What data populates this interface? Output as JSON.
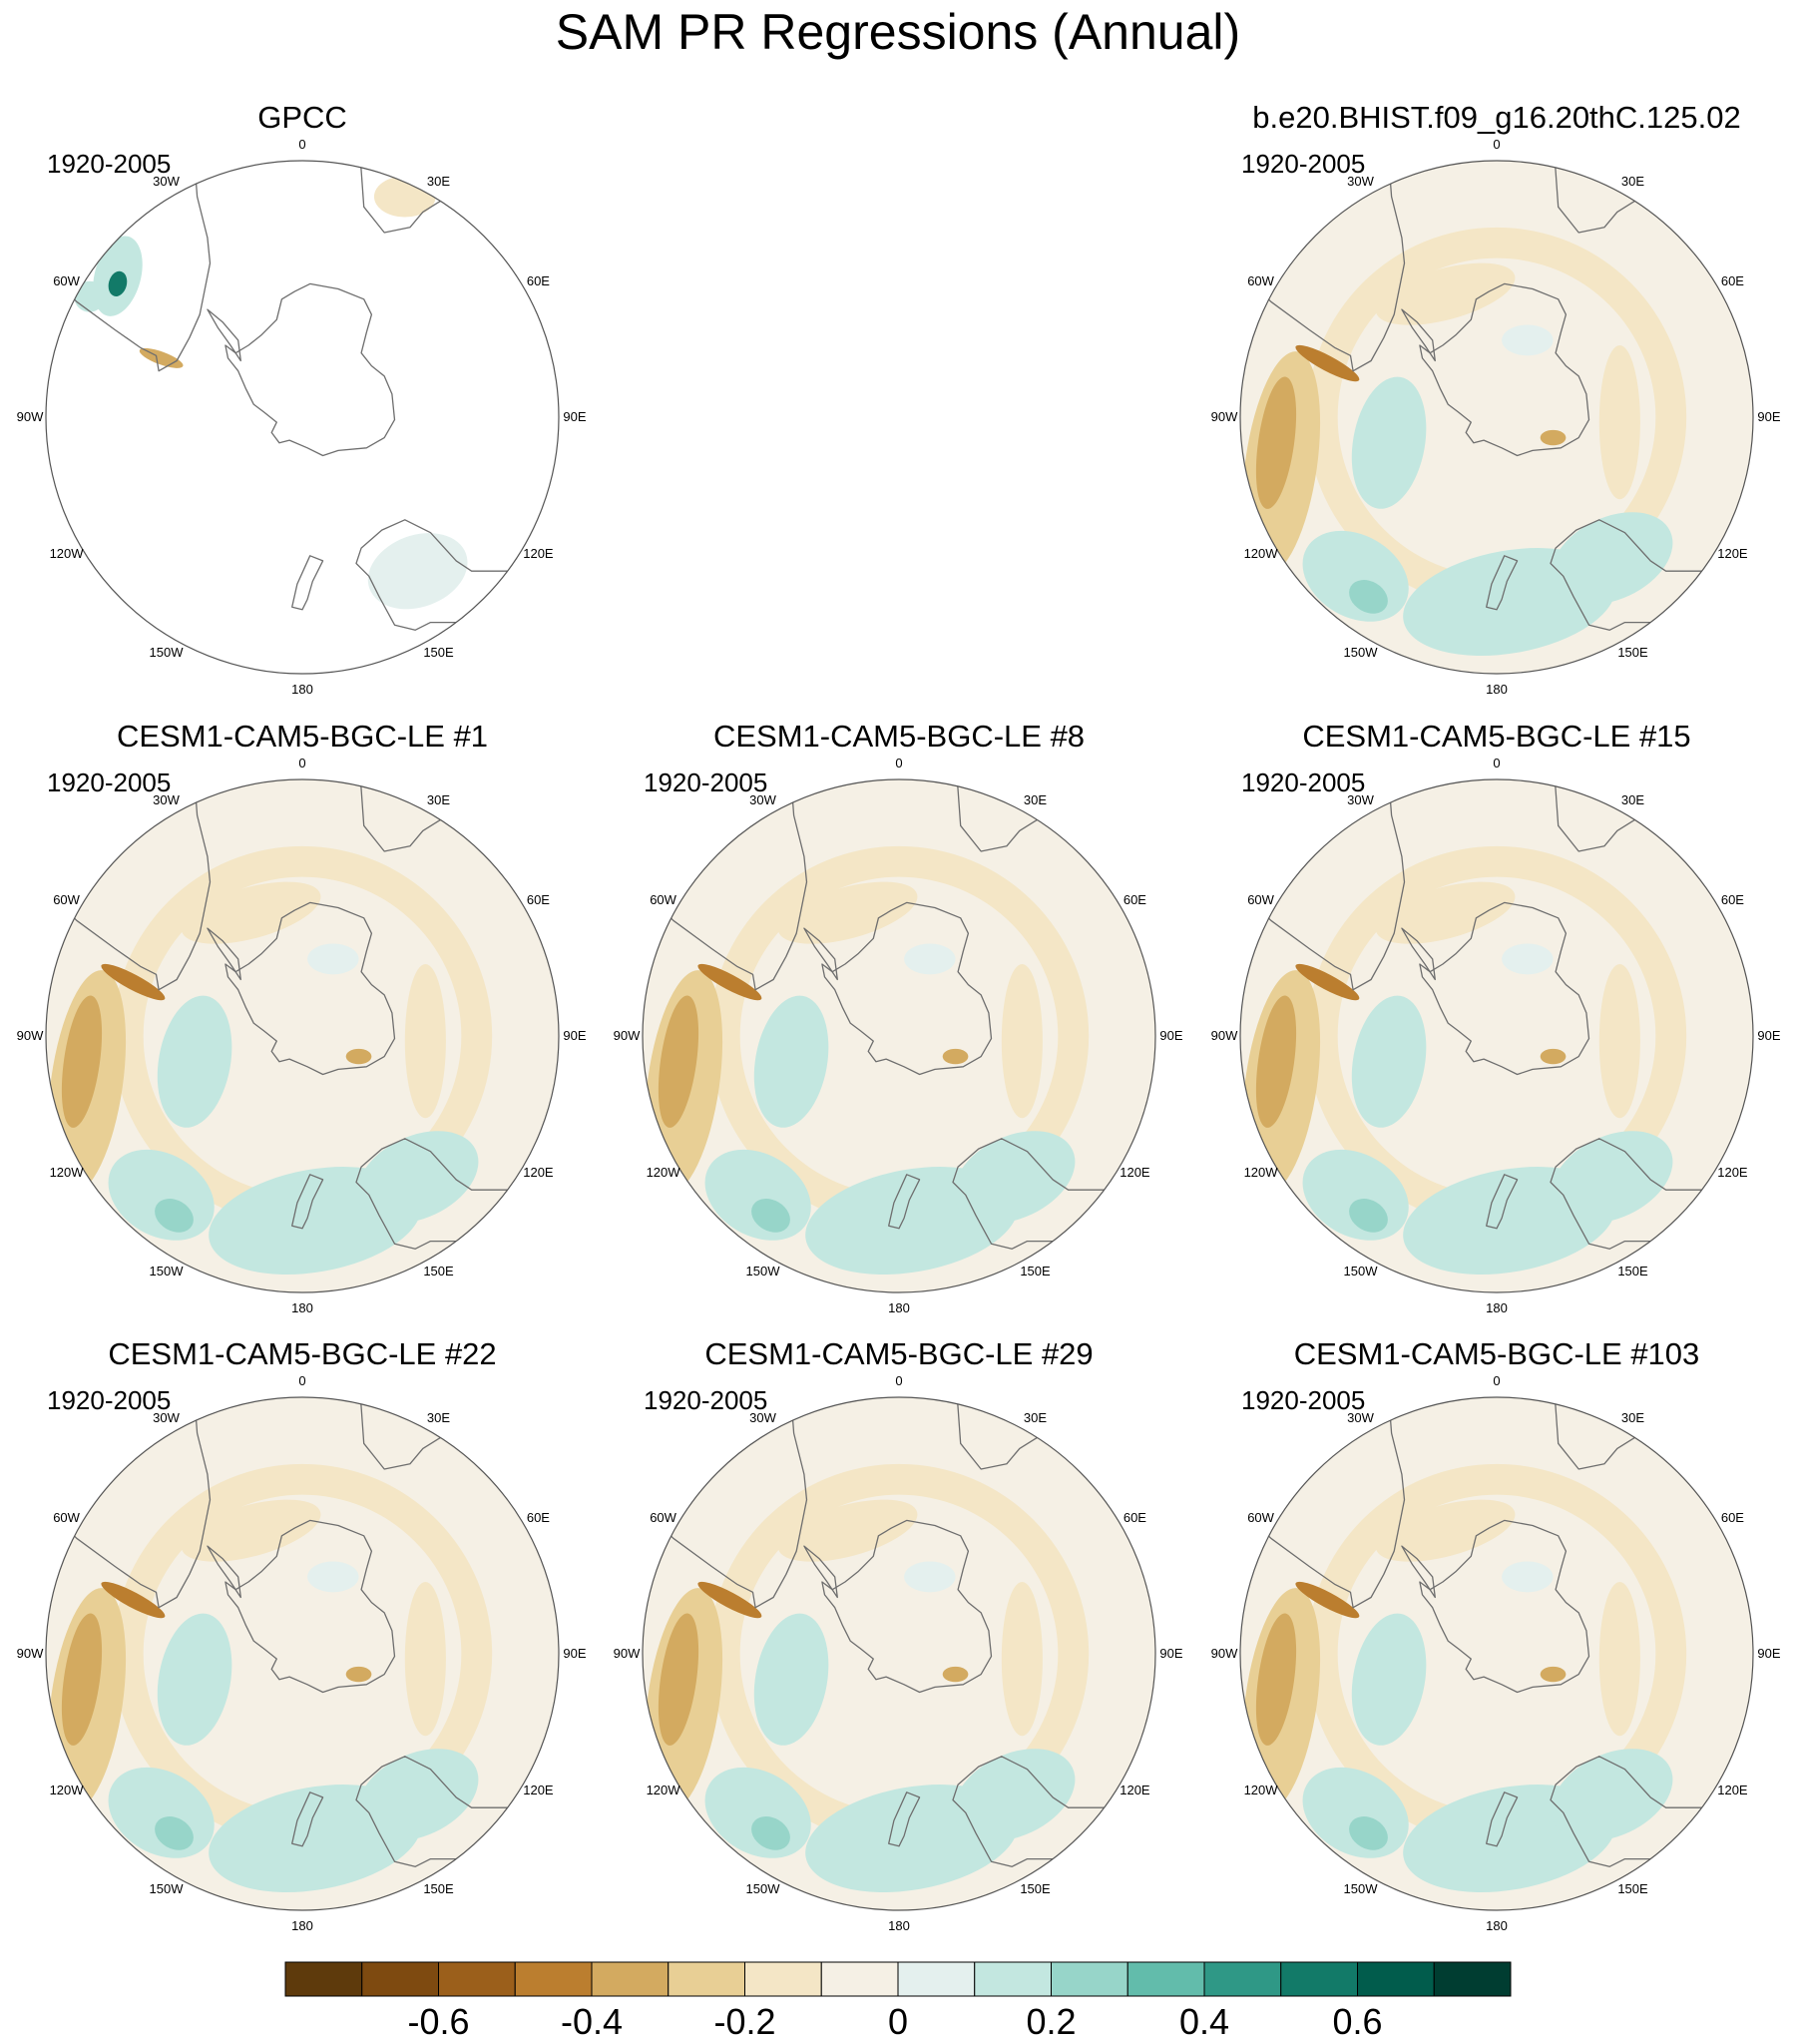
{
  "title": "SAM PR Regressions (Annual)",
  "panels": [
    {
      "title": "GPCC",
      "period": "1920-2005",
      "field": "obs"
    },
    {
      "title": "b.e20.BHIST.f09_g16.20thC.125.02",
      "period": "1920-2005",
      "field": "model"
    },
    {
      "title": "CESM1-CAM5-BGC-LE #1",
      "period": "1920-2005",
      "field": "model"
    },
    {
      "title": "CESM1-CAM5-BGC-LE #8",
      "period": "1920-2005",
      "field": "model"
    },
    {
      "title": "CESM1-CAM5-BGC-LE #15",
      "period": "1920-2005",
      "field": "model"
    },
    {
      "title": "CESM1-CAM5-BGC-LE #22",
      "period": "1920-2005",
      "field": "model"
    },
    {
      "title": "CESM1-CAM5-BGC-LE #29",
      "period": "1920-2005",
      "field": "model"
    },
    {
      "title": "CESM1-CAM5-BGC-LE #103",
      "period": "1920-2005",
      "field": "model"
    }
  ],
  "longitude_labels": [
    "0",
    "30E",
    "60E",
    "90E",
    "120E",
    "150E",
    "180",
    "150W",
    "120W",
    "90W",
    "60W",
    "30W"
  ],
  "colorbar": {
    "colors": [
      "#5e3a0c",
      "#7e4a10",
      "#9b5f1b",
      "#bb7e2f",
      "#d3aa60",
      "#e8cf95",
      "#f4e6c6",
      "#f5f0e5",
      "#e4f0ee",
      "#c3e7e0",
      "#97d5c9",
      "#62bcab",
      "#2f9886",
      "#127a68",
      "#015c4c",
      "#003d31"
    ],
    "tick_values": [
      -0.6,
      -0.4,
      -0.2,
      0,
      0.2,
      0.4,
      0.6
    ],
    "tick_labels": [
      "-0.6",
      "-0.4",
      "-0.2",
      "0",
      "0.2",
      "0.4",
      "0.6"
    ],
    "range": [
      -0.8,
      0.8
    ],
    "interval": 0.1
  },
  "map_colors": {
    "ocean": "#f5f0e5",
    "coast": "#6e6e6e",
    "border": "#555555"
  }
}
